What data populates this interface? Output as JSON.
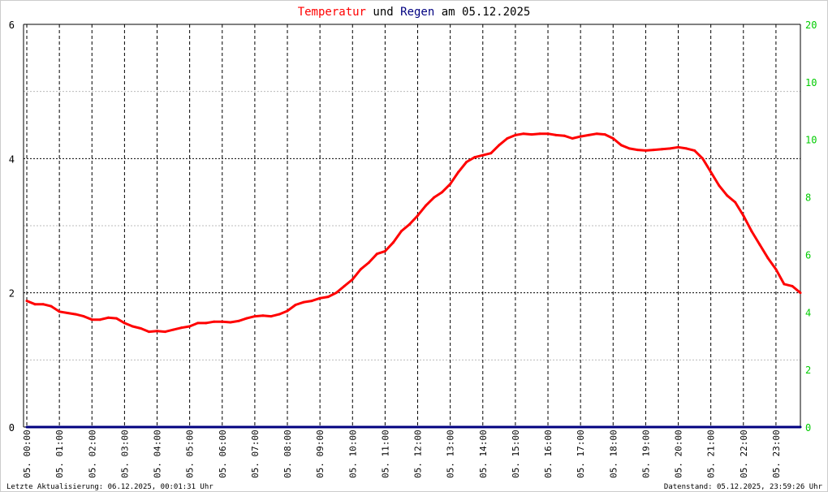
{
  "title": {
    "part1": "Temperatur",
    "part2": " und ",
    "part3": "Regen",
    "part4": " am 05.12.2025"
  },
  "footer": {
    "left": "Letzte Aktualisierung: 06.12.2025, 00:01:31 Uhr",
    "right": "Datenstand: 05.12.2025, 23:59:26 Uhr"
  },
  "colors": {
    "temperature": "#ff0000",
    "rain": "#000080",
    "right_axis_labels": "#00cc00",
    "title_text": "#000000"
  },
  "chart_data": {
    "type": "line",
    "title": "Temperatur und Regen am 05.12.2025",
    "x_ticks": [
      "05. 00:00",
      "05. 01:00",
      "05. 02:00",
      "05. 03:00",
      "05. 04:00",
      "05. 05:00",
      "05. 06:00",
      "05. 07:00",
      "05. 08:00",
      "05. 09:00",
      "05. 10:00",
      "05. 11:00",
      "05. 12:00",
      "05. 13:00",
      "05. 14:00",
      "05. 15:00",
      "05. 16:00",
      "05. 17:00",
      "05. 18:00",
      "05. 19:00",
      "05. 20:00",
      "05. 21:00",
      "05. 22:00",
      "05. 23:00"
    ],
    "x_range_hours": [
      -0.1,
      23.75
    ],
    "y_left": {
      "ticks": [
        "0",
        "2",
        "4",
        "6"
      ],
      "ylim": [
        0,
        6
      ]
    },
    "y_right": {
      "ticks": [
        "0",
        "2",
        "4",
        "6",
        "8",
        "10",
        "10",
        "20"
      ]
    },
    "grid": true,
    "series": [
      {
        "name": "Temperatur",
        "x_hours": [
          0.0,
          0.25,
          0.5,
          0.75,
          1.0,
          1.25,
          1.5,
          1.75,
          2.0,
          2.25,
          2.5,
          2.75,
          3.0,
          3.25,
          3.5,
          3.75,
          4.0,
          4.25,
          4.5,
          4.75,
          5.0,
          5.25,
          5.5,
          5.75,
          6.0,
          6.25,
          6.5,
          6.75,
          7.0,
          7.25,
          7.5,
          7.75,
          8.0,
          8.25,
          8.5,
          8.75,
          9.0,
          9.25,
          9.5,
          9.75,
          10.0,
          10.25,
          10.5,
          10.75,
          11.0,
          11.25,
          11.5,
          11.75,
          12.0,
          12.25,
          12.5,
          12.75,
          13.0,
          13.25,
          13.5,
          13.75,
          14.0,
          14.25,
          14.5,
          14.75,
          15.0,
          15.25,
          15.5,
          15.75,
          16.0,
          16.25,
          16.5,
          16.75,
          17.0,
          17.25,
          17.5,
          17.75,
          18.0,
          18.25,
          18.5,
          18.75,
          19.0,
          19.25,
          19.5,
          19.75,
          20.0,
          20.25,
          20.5,
          20.75,
          21.0,
          21.25,
          21.5,
          21.75,
          22.0,
          22.25,
          22.5,
          22.75,
          23.0,
          23.25,
          23.5,
          23.75
        ],
        "values": [
          1.88,
          1.83,
          1.83,
          1.8,
          1.72,
          1.7,
          1.68,
          1.65,
          1.6,
          1.6,
          1.63,
          1.62,
          1.55,
          1.5,
          1.47,
          1.42,
          1.43,
          1.42,
          1.45,
          1.48,
          1.5,
          1.55,
          1.55,
          1.57,
          1.57,
          1.56,
          1.58,
          1.62,
          1.65,
          1.66,
          1.65,
          1.68,
          1.73,
          1.82,
          1.86,
          1.88,
          1.92,
          1.94,
          2.0,
          2.1,
          2.2,
          2.35,
          2.45,
          2.58,
          2.62,
          2.75,
          2.92,
          3.02,
          3.15,
          3.3,
          3.42,
          3.5,
          3.62,
          3.8,
          3.95,
          4.02,
          4.05,
          4.08,
          4.2,
          4.3,
          4.35,
          4.37,
          4.36,
          4.37,
          4.37,
          4.35,
          4.34,
          4.3,
          4.33,
          4.35,
          4.37,
          4.36,
          4.3,
          4.2,
          4.15,
          4.13,
          4.12,
          4.13,
          4.14,
          4.15,
          4.17,
          4.15,
          4.12,
          4.0,
          3.8,
          3.6,
          3.45,
          3.35,
          3.15,
          2.92,
          2.72,
          2.52,
          2.35,
          2.13,
          2.1,
          2.0
        ]
      },
      {
        "name": "Regen",
        "x_hours": [
          0.0,
          23.75
        ],
        "values": [
          0,
          0
        ]
      }
    ]
  }
}
